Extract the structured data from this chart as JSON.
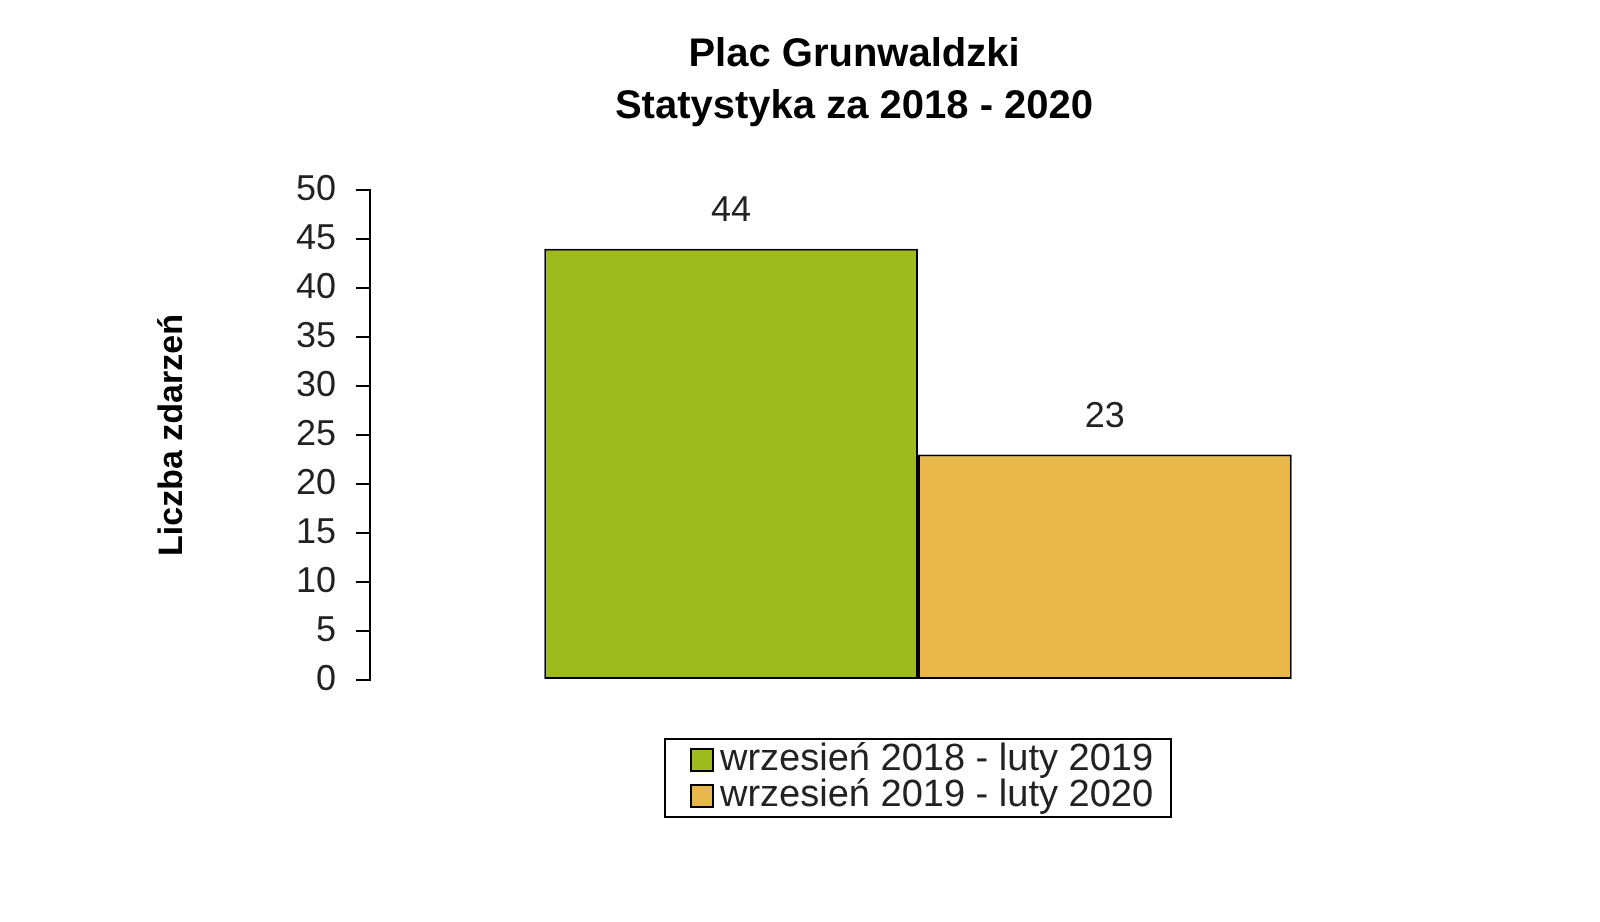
{
  "chart_data": {
    "type": "bar",
    "title": "Plac Grunwaldzki\nStatystyka za 2018 - 2020",
    "ylabel": "Liczba zdarzeń",
    "categories": [
      null
    ],
    "series": [
      {
        "name": "wrzesień 2018 - luty 2019",
        "color": "#9ebb1e",
        "values": [
          44
        ]
      },
      {
        "name": "wrzesień 2019 - luty 2020",
        "color": "#e8b84a",
        "values": [
          23
        ]
      }
    ],
    "ylim": [
      0,
      50
    ],
    "yticks": [
      0,
      5,
      10,
      15,
      20,
      25,
      30,
      35,
      40,
      45,
      50
    ],
    "data_labels": true,
    "legend": "bottom"
  }
}
